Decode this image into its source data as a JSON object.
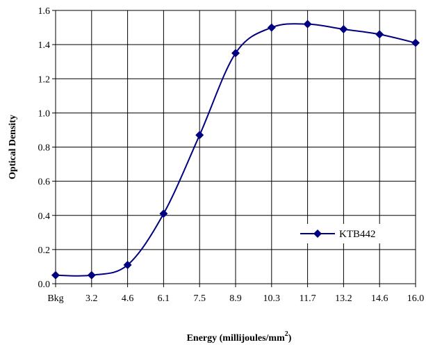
{
  "chart_data": {
    "type": "line",
    "categories": [
      "Bkg",
      "3.2",
      "4.6",
      "6.1",
      "7.5",
      "8.9",
      "10.3",
      "11.7",
      "13.2",
      "14.6",
      "16.0"
    ],
    "series": [
      {
        "name": "KTB442",
        "values": [
          0.05,
          0.05,
          0.11,
          0.41,
          0.87,
          1.35,
          1.5,
          1.52,
          1.49,
          1.46,
          1.41
        ],
        "color": "#000080",
        "marker": "diamond",
        "smooth": true
      }
    ],
    "title": "",
    "xlabel": "Energy (millijoules/mm",
    "xlabel_superscript": "2",
    "xlabel_close": ")",
    "ylabel": "Optical Density",
    "ylim": [
      0.0,
      1.6
    ],
    "yticks": [
      "0.0",
      "0.2",
      "0.4",
      "0.6",
      "0.8",
      "1.0",
      "1.2",
      "1.4",
      "1.6"
    ],
    "grid": true,
    "legend_position": "bottom-right"
  }
}
